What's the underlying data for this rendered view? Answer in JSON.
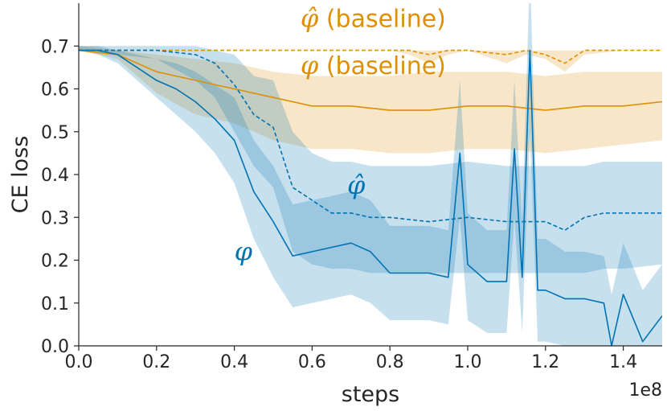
{
  "chart_data": {
    "type": "line",
    "xlabel": "steps",
    "ylabel": "CE loss",
    "x_scale_label": "1e8",
    "xlim": [
      0.0,
      1.5
    ],
    "ylim": [
      0.0,
      0.8
    ],
    "x_ticks": [
      0.0,
      0.2,
      0.4,
      0.6,
      0.8,
      1.0,
      1.2,
      1.4
    ],
    "x_tick_labels": [
      "0.0",
      "0.2",
      "0.4",
      "0.6",
      "0.8",
      "1.0",
      "1.2",
      "1.4"
    ],
    "y_ticks": [
      0.0,
      0.1,
      0.2,
      0.3,
      0.4,
      0.5,
      0.6,
      0.7
    ],
    "y_tick_labels": [
      "0.0",
      "0.1",
      "0.2",
      "0.3",
      "0.4",
      "0.5",
      "0.6",
      "0.7"
    ],
    "grid": false,
    "series": [
      {
        "name": "phi (baseline)",
        "label_symbol": "φ",
        "label_text": " (baseline)",
        "color": "#de8f05",
        "style": "solid",
        "x": [
          0.0,
          0.1,
          0.2,
          0.3,
          0.4,
          0.5,
          0.6,
          0.7,
          0.8,
          0.9,
          1.0,
          1.1,
          1.2,
          1.3,
          1.4,
          1.5
        ],
        "y": [
          0.69,
          0.68,
          0.64,
          0.62,
          0.6,
          0.58,
          0.56,
          0.56,
          0.55,
          0.55,
          0.56,
          0.56,
          0.55,
          0.56,
          0.56,
          0.57
        ],
        "lower": [
          0.69,
          0.67,
          0.59,
          0.54,
          0.52,
          0.48,
          0.46,
          0.46,
          0.45,
          0.45,
          0.46,
          0.46,
          0.45,
          0.46,
          0.47,
          0.48
        ],
        "upper": [
          0.7,
          0.69,
          0.68,
          0.67,
          0.66,
          0.64,
          0.63,
          0.63,
          0.63,
          0.64,
          0.64,
          0.64,
          0.63,
          0.64,
          0.64,
          0.64
        ]
      },
      {
        "name": "phi-hat (baseline)",
        "label_symbol": "φ̂",
        "label_text": " (baseline)",
        "color": "#de8f05",
        "style": "dashed",
        "x": [
          0.0,
          0.1,
          0.2,
          0.3,
          0.4,
          0.5,
          0.6,
          0.7,
          0.8,
          0.85,
          0.9,
          0.95,
          1.0,
          1.1,
          1.15,
          1.2,
          1.25,
          1.3,
          1.4,
          1.5
        ],
        "y": [
          0.69,
          0.69,
          0.69,
          0.69,
          0.69,
          0.69,
          0.69,
          0.69,
          0.69,
          0.69,
          0.68,
          0.69,
          0.69,
          0.68,
          0.69,
          0.68,
          0.66,
          0.69,
          0.69,
          0.69
        ],
        "lower": [
          0.69,
          0.69,
          0.69,
          0.69,
          0.69,
          0.69,
          0.69,
          0.69,
          0.69,
          0.68,
          0.66,
          0.68,
          0.69,
          0.66,
          0.68,
          0.67,
          0.64,
          0.68,
          0.69,
          0.69
        ],
        "upper": [
          0.69,
          0.69,
          0.69,
          0.69,
          0.69,
          0.69,
          0.69,
          0.69,
          0.69,
          0.69,
          0.69,
          0.69,
          0.69,
          0.69,
          0.69,
          0.69,
          0.69,
          0.69,
          0.69,
          0.69
        ]
      },
      {
        "name": "phi-hat",
        "label_symbol": "φ̂",
        "label_text": "",
        "color": "#0173b2",
        "style": "dashed",
        "x": [
          0.0,
          0.1,
          0.2,
          0.3,
          0.35,
          0.4,
          0.45,
          0.5,
          0.55,
          0.6,
          0.65,
          0.7,
          0.75,
          0.8,
          0.9,
          1.0,
          1.1,
          1.2,
          1.25,
          1.3,
          1.35,
          1.4,
          1.5
        ],
        "y": [
          0.69,
          0.69,
          0.69,
          0.68,
          0.66,
          0.61,
          0.54,
          0.51,
          0.37,
          0.34,
          0.31,
          0.31,
          0.3,
          0.3,
          0.29,
          0.3,
          0.29,
          0.29,
          0.27,
          0.3,
          0.31,
          0.31,
          0.31
        ],
        "lower": [
          0.69,
          0.68,
          0.67,
          0.62,
          0.58,
          0.5,
          0.42,
          0.37,
          0.22,
          0.19,
          0.18,
          0.18,
          0.17,
          0.17,
          0.17,
          0.17,
          0.17,
          0.17,
          0.17,
          0.17,
          0.18,
          0.18,
          0.19
        ],
        "upper": [
          0.7,
          0.7,
          0.7,
          0.7,
          0.69,
          0.68,
          0.63,
          0.62,
          0.5,
          0.45,
          0.43,
          0.43,
          0.42,
          0.42,
          0.42,
          0.43,
          0.42,
          0.42,
          0.42,
          0.42,
          0.43,
          0.43,
          0.43
        ]
      },
      {
        "name": "phi",
        "label_symbol": "φ",
        "label_text": "",
        "color": "#0173b2",
        "style": "solid",
        "x": [
          0.0,
          0.05,
          0.1,
          0.15,
          0.2,
          0.25,
          0.3,
          0.35,
          0.4,
          0.45,
          0.5,
          0.55,
          0.6,
          0.7,
          0.75,
          0.8,
          0.85,
          0.9,
          0.95,
          0.98,
          1.0,
          1.05,
          1.1,
          1.12,
          1.14,
          1.16,
          1.18,
          1.2,
          1.25,
          1.3,
          1.35,
          1.37,
          1.4,
          1.45,
          1.5
        ],
        "y": [
          0.69,
          0.69,
          0.68,
          0.65,
          0.62,
          0.6,
          0.57,
          0.53,
          0.48,
          0.36,
          0.29,
          0.21,
          0.22,
          0.24,
          0.22,
          0.17,
          0.17,
          0.17,
          0.16,
          0.45,
          0.19,
          0.15,
          0.15,
          0.46,
          0.16,
          0.69,
          0.13,
          0.13,
          0.11,
          0.11,
          0.1,
          0.0,
          0.12,
          0.01,
          0.07
        ],
        "lower": [
          0.69,
          0.68,
          0.66,
          0.62,
          0.58,
          0.54,
          0.5,
          0.45,
          0.38,
          0.25,
          0.16,
          0.09,
          0.1,
          0.12,
          0.1,
          0.06,
          0.06,
          0.06,
          0.05,
          0.3,
          0.06,
          0.03,
          0.03,
          0.3,
          0.03,
          0.5,
          0.01,
          0.01,
          0.0,
          0.0,
          0.0,
          0.0,
          0.0,
          0.0,
          0.0
        ],
        "upper": [
          0.7,
          0.7,
          0.69,
          0.68,
          0.67,
          0.66,
          0.64,
          0.61,
          0.58,
          0.48,
          0.42,
          0.33,
          0.34,
          0.36,
          0.34,
          0.28,
          0.28,
          0.28,
          0.27,
          0.62,
          0.31,
          0.27,
          0.27,
          0.62,
          0.29,
          0.88,
          0.25,
          0.25,
          0.22,
          0.22,
          0.21,
          0.12,
          0.24,
          0.13,
          0.19
        ]
      }
    ],
    "annotations": [
      {
        "series": "phi-hat (baseline)",
        "x": 0.57,
        "y": 0.745
      },
      {
        "series": "phi (baseline)",
        "x": 0.57,
        "y": 0.635
      },
      {
        "series": "phi-hat",
        "x": 0.69,
        "y": 0.355
      },
      {
        "series": "phi",
        "x": 0.4,
        "y": 0.2
      }
    ]
  }
}
